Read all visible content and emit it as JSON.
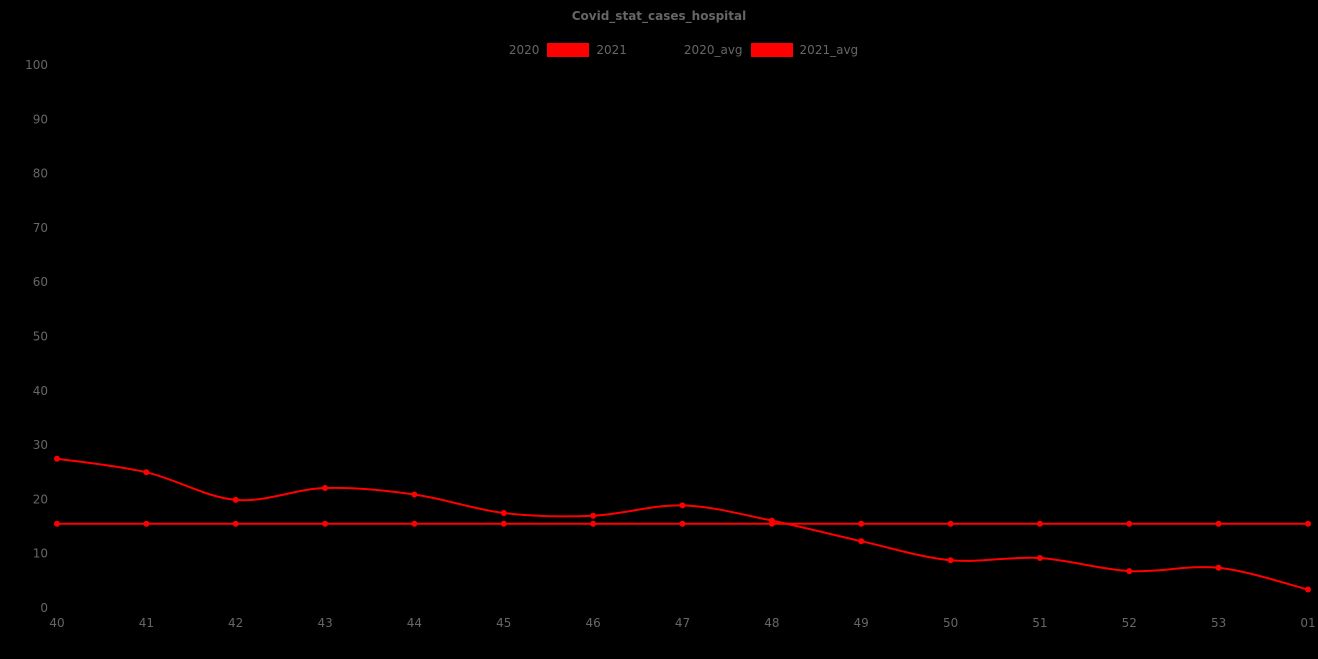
{
  "background": "#000000",
  "text_color": "#666666",
  "chart": {
    "title": "Covid_stat_cases_hospital"
  },
  "legend": {
    "items": [
      {
        "label": "2020",
        "color": "#000000"
      },
      {
        "label": "2021",
        "color": "#ff0000"
      },
      {
        "label": "2020_avg",
        "color": "#000000"
      },
      {
        "label": "2021_avg",
        "color": "#ff0000"
      }
    ]
  },
  "chart_data": {
    "type": "line",
    "title": "Covid_stat_cases_hospital",
    "categories": [
      "40",
      "41",
      "42",
      "43",
      "44",
      "45",
      "46",
      "47",
      "48",
      "49",
      "50",
      "51",
      "52",
      "53",
      "01"
    ],
    "series": [
      {
        "name": "2020",
        "color": "#000000",
        "smooth": true,
        "markers": true,
        "values": []
      },
      {
        "name": "2021",
        "color": "#ff0000",
        "smooth": true,
        "markers": true,
        "values": [
          27.5,
          25.0,
          19.9,
          22.1,
          20.9,
          17.5,
          17.0,
          18.9,
          16.1,
          12.3,
          8.8,
          9.2,
          6.8,
          7.4,
          3.4
        ]
      },
      {
        "name": "2020_avg",
        "color": "#000000",
        "smooth": false,
        "markers": true,
        "values": []
      },
      {
        "name": "2021_avg",
        "color": "#ff0000",
        "smooth": false,
        "markers": true,
        "values": [
          15.5,
          15.5,
          15.5,
          15.5,
          15.5,
          15.5,
          15.5,
          15.5,
          15.5,
          15.5,
          15.5,
          15.5,
          15.5,
          15.5,
          15.5
        ]
      }
    ],
    "xlabel": "",
    "ylabel": "",
    "ylim": [
      0,
      100
    ],
    "y_ticks": [
      0,
      10,
      20,
      30,
      40,
      50,
      60,
      70,
      80,
      90,
      100
    ],
    "grid": false,
    "legend_position": "top"
  }
}
